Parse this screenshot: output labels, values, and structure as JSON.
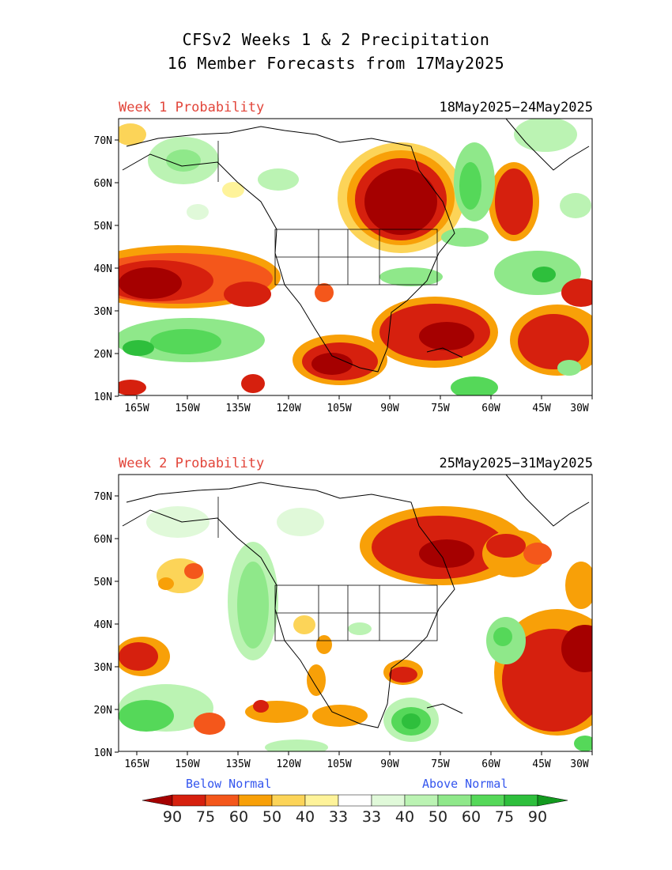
{
  "header": {
    "title_line1": "CFSv2 Weeks 1 & 2 Precipitation",
    "title_line2": "16 Member Forecasts from 17May2025"
  },
  "panels": [
    {
      "label": "Week 1 Probability",
      "date_range": "18May2025−24May2025"
    },
    {
      "label": "Week 2 Probability",
      "date_range": "25May2025−31May2025"
    }
  ],
  "axes": {
    "lat_labels": [
      "70N",
      "60N",
      "50N",
      "40N",
      "30N",
      "20N",
      "10N"
    ],
    "lon_labels": [
      "165W",
      "150W",
      "135W",
      "120W",
      "105W",
      "90W",
      "75W",
      "60W",
      "45W",
      "30W"
    ]
  },
  "legend": {
    "below_label": "Below Normal",
    "above_label": "Above Normal",
    "tick_labels": [
      "90",
      "75",
      "60",
      "50",
      "40",
      "33",
      "33",
      "40",
      "50",
      "60",
      "75",
      "90"
    ],
    "colors": [
      "#a50000",
      "#d6200e",
      "#f4571b",
      "#f8a008",
      "#fcd458",
      "#fef39a",
      "#ffffff",
      "#e0f9d9",
      "#bbf3b3",
      "#8fe88a",
      "#55d859",
      "#2ebf3c",
      "#139a1f"
    ]
  },
  "palette": {
    "prob_label_color": "#e2453a",
    "below_text": "#3355ee",
    "above_text": "#3355ee"
  }
}
